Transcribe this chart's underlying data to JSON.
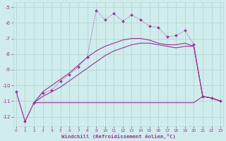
{
  "xlabel": "Windchill (Refroidissement éolien,°C)",
  "bg_color": "#d0ecec",
  "grid_color": "#b8d8d8",
  "line_color": "#993399",
  "xlim": [
    -0.3,
    23.3
  ],
  "ylim": [
    -12.6,
    -4.7
  ],
  "xticks": [
    0,
    1,
    2,
    3,
    4,
    5,
    6,
    7,
    8,
    9,
    10,
    11,
    12,
    13,
    14,
    15,
    16,
    17,
    18,
    19,
    20,
    21,
    22,
    23
  ],
  "yticks": [
    -12,
    -11,
    -10,
    -9,
    -8,
    -7,
    -6,
    -5
  ],
  "series_marker_x": [
    0,
    1,
    2,
    3,
    4,
    5,
    6,
    7,
    8,
    9,
    10,
    11,
    12,
    13,
    14,
    15,
    16,
    17,
    18,
    19,
    20,
    21,
    22,
    23
  ],
  "series_marker_y": [
    -10.4,
    -12.3,
    -11.1,
    -10.5,
    -10.3,
    -9.7,
    -9.3,
    -8.8,
    -8.2,
    -5.2,
    -5.8,
    -5.4,
    -5.9,
    -5.5,
    -5.8,
    -6.2,
    -6.3,
    -6.9,
    -6.8,
    -6.5,
    -7.4,
    -10.7,
    -10.8,
    -11.0
  ],
  "series_linear1_x": [
    0,
    1,
    2,
    3,
    4,
    5,
    6,
    7,
    8,
    9,
    10,
    11,
    12,
    13,
    14,
    15,
    16,
    17,
    18,
    19,
    20,
    21,
    22,
    23
  ],
  "series_linear1_y": [
    -10.4,
    -12.3,
    -11.1,
    -10.4,
    -10.0,
    -9.6,
    -9.2,
    -8.7,
    -8.2,
    -7.8,
    -7.5,
    -7.3,
    -7.1,
    -7.0,
    -7.0,
    -7.1,
    -7.3,
    -7.4,
    -7.4,
    -7.3,
    -7.5,
    -10.7,
    -10.8,
    -11.0
  ],
  "series_linear2_x": [
    2,
    3,
    4,
    5,
    6,
    7,
    8,
    9,
    10,
    11,
    12,
    13,
    14,
    15,
    16,
    17,
    18,
    19,
    20,
    21,
    22,
    23
  ],
  "series_linear2_y": [
    -11.1,
    -10.7,
    -10.4,
    -10.1,
    -9.7,
    -9.3,
    -8.9,
    -8.5,
    -8.1,
    -7.8,
    -7.6,
    -7.4,
    -7.3,
    -7.3,
    -7.4,
    -7.5,
    -7.6,
    -7.5,
    -7.5,
    -10.7,
    -10.8,
    -11.0
  ],
  "series_flat_x": [
    2,
    3,
    4,
    5,
    6,
    7,
    8,
    9,
    10,
    11,
    12,
    13,
    14,
    15,
    16,
    17,
    18,
    19,
    20,
    21,
    22,
    23
  ],
  "series_flat_y": [
    -11.1,
    -11.1,
    -11.1,
    -11.1,
    -11.1,
    -11.1,
    -11.1,
    -11.1,
    -11.1,
    -11.1,
    -11.1,
    -11.1,
    -11.1,
    -11.1,
    -11.1,
    -11.1,
    -11.1,
    -11.1,
    -11.1,
    -10.7,
    -10.8,
    -11.0
  ]
}
